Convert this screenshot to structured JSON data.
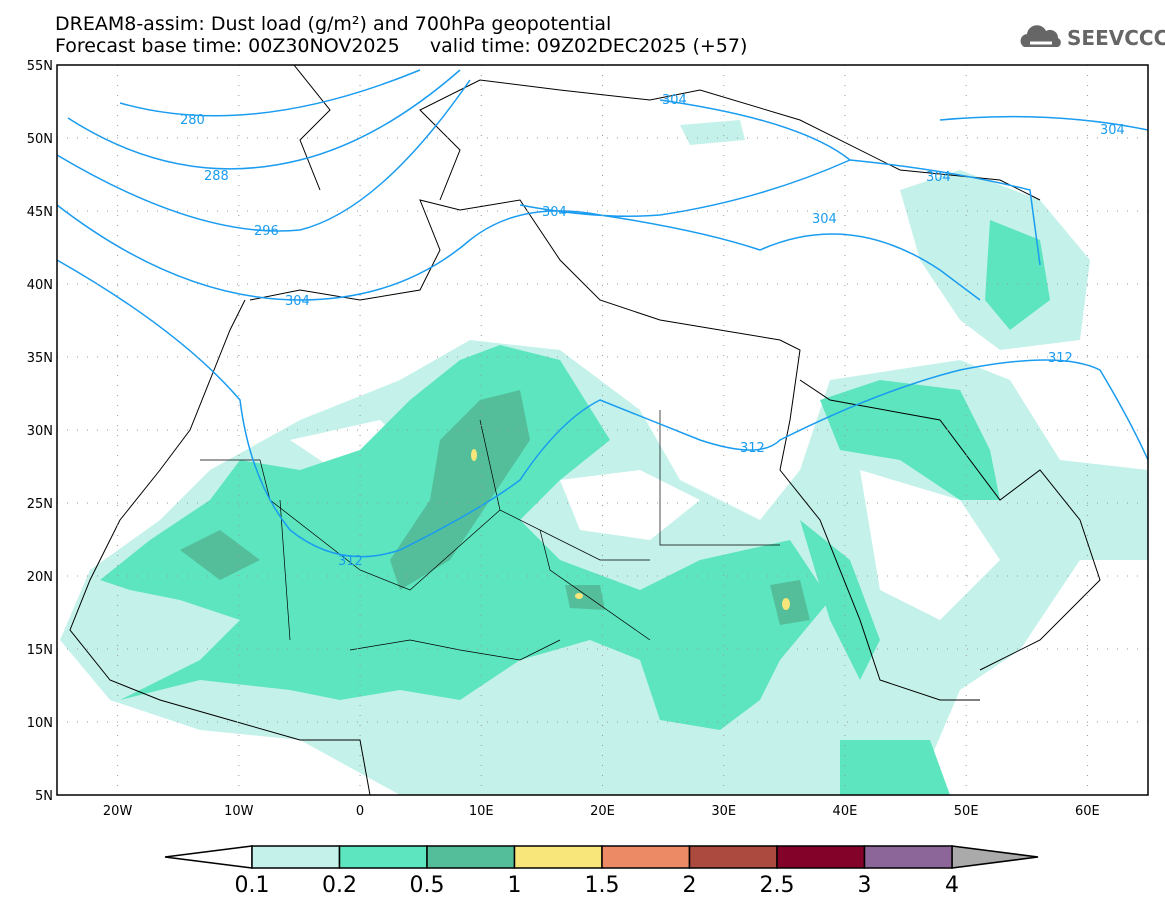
{
  "header": {
    "title": "DREAM8-assim: Dust load (g/m²) and 700hPa geopotential",
    "subtitle": "Forecast base time: 00Z30NOV2025     valid time: 09Z02DEC2025 (+57)"
  },
  "logo": {
    "text": "SEEVCCC",
    "icon": "cloud-icon"
  },
  "map": {
    "lat_labels": [
      "55N",
      "50N",
      "45N",
      "40N",
      "35N",
      "30N",
      "25N",
      "20N",
      "15N",
      "10N",
      "5N"
    ],
    "lon_labels": [
      "20W",
      "10W",
      "0",
      "10E",
      "20E",
      "30E",
      "40E",
      "50E",
      "60E"
    ],
    "contour_labels": [
      "280",
      "288",
      "296",
      "304",
      "304",
      "304",
      "304",
      "304",
      "304",
      "312",
      "312",
      "312"
    ]
  },
  "colorbar": {
    "labels": [
      "0.1",
      "0.2",
      "0.5",
      "1",
      "1.5",
      "2",
      "2.5",
      "3",
      "4"
    ],
    "colors": [
      "#c4f2ea",
      "#5ce5be",
      "#54be9a",
      "#f8e67a",
      "#ec8a66",
      "#ad4a3f",
      "#82022a",
      "#8c6699"
    ],
    "under_color": "#ffffff",
    "over_color": "#aaaaaa"
  }
}
